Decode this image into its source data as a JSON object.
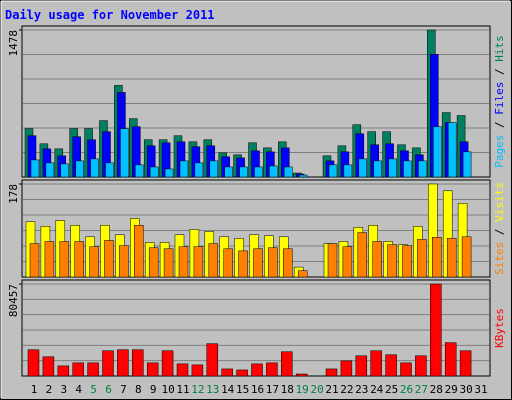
{
  "title": "Daily usage for November 2011",
  "legend_separator": " / ",
  "chart_data": [
    {
      "type": "bar",
      "ylim": [
        0,
        1478
      ],
      "yticks": [
        1478
      ],
      "series": [
        {
          "name": "Hits",
          "color": "#008060",
          "values": [
            486,
            334,
            283,
            486,
            486,
            567,
            921,
            587,
            375,
            375,
            415,
            354,
            375,
            243,
            223,
            344,
            293,
            354,
            40,
            0,
            213,
            314,
            526,
            456,
            456,
            324,
            293,
            1478,
            648,
            618,
            null
          ]
        },
        {
          "name": "Files",
          "color": "#0000ff",
          "values": [
            415,
            283,
            213,
            405,
            375,
            456,
            850,
            506,
            314,
            344,
            354,
            304,
            314,
            203,
            192,
            263,
            253,
            293,
            30,
            0,
            162,
            253,
            435,
            324,
            334,
            263,
            223,
            1234,
            547,
            354,
            null
          ]
        },
        {
          "name": "Pages",
          "color": "#00c0ff",
          "values": [
            172,
            142,
            132,
            162,
            182,
            142,
            486,
            122,
            101,
            81,
            162,
            142,
            162,
            101,
            101,
            101,
            111,
            101,
            20,
            0,
            122,
            122,
            182,
            162,
            182,
            162,
            162,
            506,
            547,
            253,
            null
          ]
        }
      ]
    },
    {
      "type": "bar",
      "ylim": [
        0,
        178
      ],
      "yticks": [
        178
      ],
      "series": [
        {
          "name": "Visits",
          "color": "#ffff00",
          "values": [
            106,
            97,
            108,
            99,
            77,
            99,
            81,
            112,
            66,
            66,
            81,
            91,
            87,
            77,
            74,
            81,
            79,
            77,
            19,
            0,
            64,
            68,
            95,
            99,
            68,
            62,
            97,
            178,
            165,
            141,
            null
          ]
        },
        {
          "name": "Sites",
          "color": "#ff8000",
          "values": [
            64,
            68,
            68,
            68,
            58,
            70,
            60,
            99,
            56,
            54,
            58,
            58,
            64,
            54,
            50,
            54,
            56,
            54,
            12,
            0,
            64,
            58,
            85,
            68,
            62,
            60,
            72,
            76,
            74,
            77,
            null
          ]
        }
      ]
    },
    {
      "type": "bar",
      "ylim": [
        0,
        80457
      ],
      "yticks": [
        80457
      ],
      "series": [
        {
          "name": "KBytes",
          "color": "#ff0000",
          "values": [
            22987,
            16800,
            8840,
            11490,
            11490,
            22100,
            22990,
            22990,
            11490,
            22100,
            10600,
            9720,
            28290,
            6190,
            5300,
            10600,
            11490,
            21220,
            1770,
            0,
            6190,
            13260,
            17680,
            22100,
            18570,
            11490,
            17680,
            80457,
            29180,
            22100,
            null
          ]
        }
      ],
      "categories": [
        "1",
        "2",
        "3",
        "4",
        "5",
        "6",
        "7",
        "8",
        "9",
        "10",
        "11",
        "12",
        "13",
        "14",
        "15",
        "16",
        "17",
        "18",
        "19",
        "20",
        "21",
        "22",
        "23",
        "24",
        "25",
        "26",
        "27",
        "28",
        "29",
        "30",
        "31"
      ],
      "category_colors": [
        "#000000",
        "#000000",
        "#000000",
        "#000000",
        "#008040",
        "#008040",
        "#000000",
        "#000000",
        "#000000",
        "#000000",
        "#000000",
        "#008040",
        "#008040",
        "#000000",
        "#000000",
        "#000000",
        "#000000",
        "#000000",
        "#008040",
        "#008040",
        "#000000",
        "#000000",
        "#000000",
        "#000000",
        "#000000",
        "#008040",
        "#008040",
        "#000000",
        "#000000",
        "#000000",
        "#000000"
      ]
    }
  ]
}
